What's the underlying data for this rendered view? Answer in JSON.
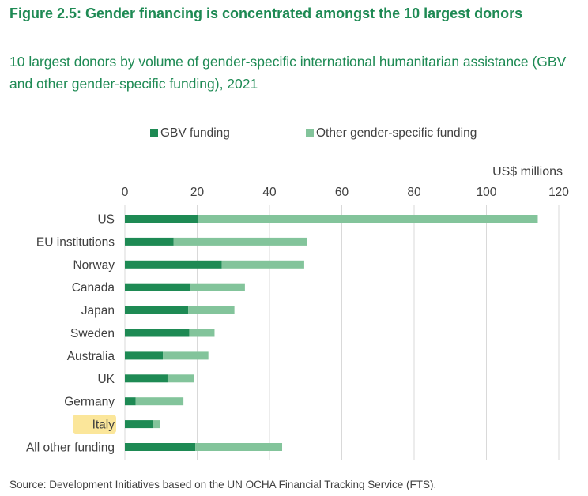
{
  "figure": {
    "title": "Figure 2.5: Gender financing is concentrated amongst the 10 largest donors",
    "subtitle": "10 largest donors by volume of gender-specific international humanitarian assistance (GBV and other gender-specific funding), 2021",
    "source": "Source: Development Initiatives based on the UN OCHA Financial Tracking Service (FTS)."
  },
  "colors": {
    "title": "#1e8a54",
    "gbv": "#1e8a54",
    "other": "#83c49b",
    "highlight": "#fbe69a",
    "grid": "#d9d9d9",
    "text": "#404040"
  },
  "chart_data": {
    "type": "bar",
    "orientation": "horizontal",
    "stacked": true,
    "unit_label": "US$ millions",
    "xlim": [
      0,
      120
    ],
    "xticks": [
      0,
      20,
      40,
      60,
      80,
      100,
      120
    ],
    "grid": true,
    "legend_position": "top",
    "categories": [
      "US",
      "EU institutions",
      "Norway",
      "Canada",
      "Japan",
      "Sweden",
      "Australia",
      "UK",
      "Germany",
      "Italy",
      "All other funding"
    ],
    "highlighted_category": "Italy",
    "series": [
      {
        "name": "GBV funding",
        "color_key": "gbv",
        "values": [
          20.2,
          13.5,
          26.8,
          18.2,
          17.5,
          17.8,
          10.5,
          11.8,
          3.0,
          7.8,
          19.5
        ]
      },
      {
        "name": "Other gender-specific funding",
        "color_key": "other",
        "values": [
          94.0,
          36.8,
          22.8,
          15.0,
          12.8,
          7.0,
          12.6,
          7.4,
          13.2,
          2.0,
          24.0
        ]
      }
    ]
  }
}
